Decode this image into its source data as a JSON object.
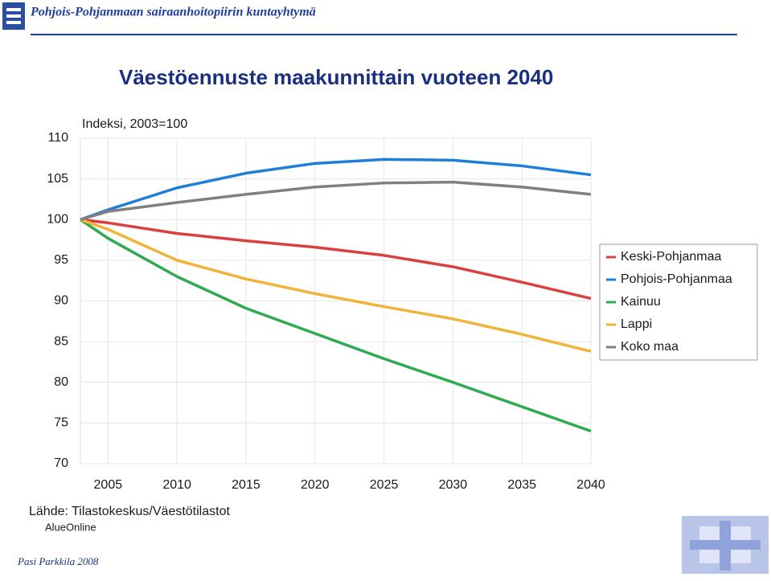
{
  "header": "Pohjois-Pohjanmaan sairaanhoitopiirin kuntayhtymä",
  "source": "Lähde: Tilastokeskus/Väestötilastot",
  "source_note": "AlueOnline",
  "footer": "Pasi Parkkila 2008",
  "chart_data": {
    "type": "line",
    "title": "Väestöennuste maakunnittain vuoteen 2040",
    "y_label": "Indeksi, 2003=100",
    "x": [
      2003,
      2005,
      2010,
      2015,
      2020,
      2025,
      2030,
      2035,
      2040
    ],
    "xlim": [
      2003,
      2040
    ],
    "xticks": [
      2005,
      2010,
      2015,
      2020,
      2025,
      2030,
      2035,
      2040
    ],
    "ylim": [
      70,
      110
    ],
    "yticks": [
      70,
      75,
      80,
      85,
      90,
      95,
      100,
      105,
      110
    ],
    "grid": true,
    "legend": "right",
    "series": [
      {
        "name": "Keski-Pohjanmaa",
        "color": "#d94040",
        "values": [
          100,
          99.6,
          98.3,
          97.4,
          96.6,
          95.6,
          94.2,
          92.3,
          90.3
        ]
      },
      {
        "name": "Pohjois-Pohjanmaa",
        "color": "#1f7fd8",
        "values": [
          100,
          101.2,
          103.9,
          105.7,
          106.9,
          107.4,
          107.3,
          106.6,
          105.5
        ]
      },
      {
        "name": "Kainuu",
        "color": "#2eaa50",
        "values": [
          100,
          97.7,
          93.0,
          89.1,
          86.0,
          82.9,
          80.0,
          77.0,
          74.0
        ]
      },
      {
        "name": "Lappi",
        "color": "#f0b43c",
        "values": [
          100,
          98.8,
          95.0,
          92.7,
          90.9,
          89.3,
          87.8,
          85.9,
          83.8
        ]
      },
      {
        "name": "Koko maa",
        "color": "#808080",
        "values": [
          100,
          101.0,
          102.1,
          103.1,
          104.0,
          104.5,
          104.6,
          104.0,
          103.1
        ]
      }
    ]
  }
}
